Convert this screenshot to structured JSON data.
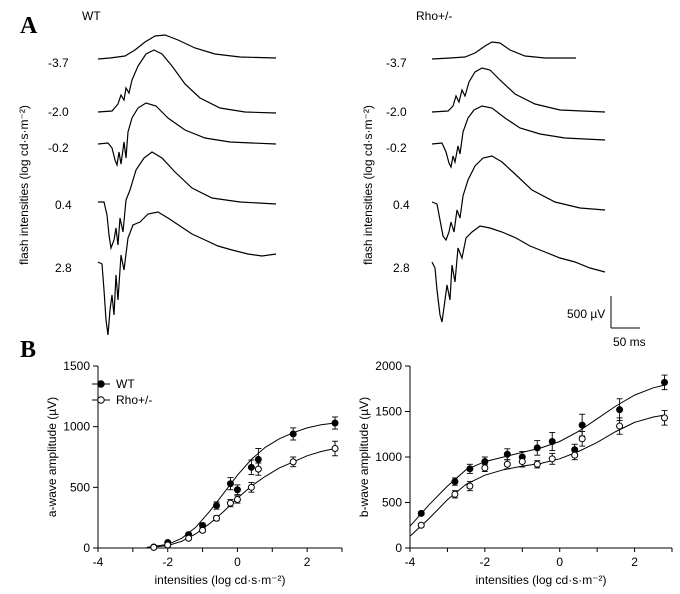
{
  "panel_a": {
    "letter": "A",
    "y_label": "flash intensities (log cd·s·m⁻²)",
    "groups": [
      {
        "name": "WT",
        "intensities": [
          "-3.7",
          "-2.0",
          "-0.2",
          "0.4",
          "2.8"
        ]
      },
      {
        "name": "Rho+/-",
        "intensities": [
          "-3.7",
          "-2.0",
          "-0.2",
          "0.4",
          "2.8"
        ]
      }
    ],
    "scale_bar": {
      "amplitude": "500 µV",
      "time": "50 ms"
    }
  },
  "panel_b": {
    "letter": "B",
    "x_label": "intensities (log cd·s·m⁻²)",
    "legend": {
      "wt": "WT",
      "rho": "Rho+/-"
    }
  },
  "chart_data": [
    {
      "type": "scatter",
      "ylabel": "a-wave amplitude (µV)",
      "xlabel": "intensities (log cd·s·m⁻²)",
      "xlim": [
        -4,
        3
      ],
      "ylim": [
        0,
        1500
      ],
      "xticks": [
        "-4",
        "-2",
        "0",
        "2"
      ],
      "yticks": [
        "0",
        "500",
        "1000",
        "1500"
      ],
      "legend": "top-left",
      "series": [
        {
          "name": "WT",
          "marker": "filled-circle",
          "x": [
            -2.4,
            -2.0,
            -1.4,
            -1.0,
            -0.6,
            -0.2,
            0.0,
            0.4,
            0.6,
            1.6,
            2.8
          ],
          "y": [
            8,
            45,
            110,
            185,
            350,
            530,
            480,
            665,
            730,
            940,
            1030
          ],
          "err": [
            0,
            8,
            12,
            20,
            30,
            50,
            40,
            60,
            90,
            50,
            50
          ]
        },
        {
          "name": "Rho+/-",
          "marker": "open-circle",
          "x": [
            -2.4,
            -2.0,
            -1.4,
            -1.0,
            -0.6,
            -0.2,
            0.0,
            0.4,
            0.6,
            1.6,
            2.8
          ],
          "y": [
            5,
            25,
            80,
            145,
            245,
            370,
            400,
            500,
            650,
            710,
            820
          ],
          "err": [
            0,
            6,
            10,
            15,
            20,
            30,
            30,
            40,
            50,
            40,
            60
          ]
        }
      ],
      "fits": [
        {
          "name": "WT",
          "x": [
            -2.6,
            -2.0,
            -1.6,
            -1.2,
            -0.8,
            -0.4,
            0.0,
            0.4,
            0.8,
            1.2,
            1.6,
            2.0,
            2.4,
            2.8
          ],
          "y": [
            5,
            30,
            80,
            170,
            300,
            450,
            600,
            730,
            830,
            900,
            950,
            990,
            1015,
            1030
          ]
        },
        {
          "name": "Rho+/-",
          "x": [
            -2.6,
            -2.0,
            -1.6,
            -1.2,
            -0.8,
            -0.4,
            0.0,
            0.4,
            0.8,
            1.2,
            1.6,
            2.0,
            2.4,
            2.8
          ],
          "y": [
            3,
            20,
            55,
            115,
            200,
            300,
            410,
            510,
            590,
            660,
            710,
            760,
            795,
            820
          ]
        }
      ]
    },
    {
      "type": "scatter",
      "ylabel": "b-wave amplitude (µV)",
      "xlabel": "intensities (log cd·s·m⁻²)",
      "xlim": [
        -4,
        3
      ],
      "ylim": [
        0,
        2000
      ],
      "xticks": [
        "-4",
        "-2",
        "0",
        "2"
      ],
      "yticks": [
        "0",
        "500",
        "1000",
        "1500",
        "2000"
      ],
      "series": [
        {
          "name": "WT",
          "marker": "filled-circle",
          "x": [
            -3.7,
            -2.8,
            -2.4,
            -2.0,
            -1.4,
            -1.0,
            -0.6,
            -0.2,
            0.4,
            0.6,
            1.6,
            2.8
          ],
          "y": [
            380,
            730,
            870,
            950,
            1030,
            1000,
            1100,
            1170,
            1080,
            1350,
            1520,
            1820
          ],
          "err": [
            20,
            40,
            50,
            50,
            60,
            60,
            80,
            100,
            60,
            120,
            120,
            80
          ]
        },
        {
          "name": "Rho+/-",
          "marker": "open-circle",
          "x": [
            -3.7,
            -2.8,
            -2.4,
            -2.0,
            -1.4,
            -1.0,
            -0.6,
            -0.2,
            0.4,
            0.6,
            1.6,
            2.8
          ],
          "y": [
            250,
            590,
            680,
            880,
            920,
            950,
            920,
            980,
            1020,
            1200,
            1340,
            1430
          ],
          "err": [
            20,
            40,
            50,
            40,
            50,
            60,
            40,
            60,
            50,
            80,
            90,
            80
          ]
        }
      ],
      "fits": [
        {
          "name": "WT",
          "x": [
            -4.0,
            -3.5,
            -3.0,
            -2.5,
            -2.0,
            -1.5,
            -1.0,
            -0.5,
            0.0,
            0.5,
            1.0,
            1.5,
            2.0,
            2.5,
            2.8
          ],
          "y": [
            240,
            470,
            680,
            860,
            950,
            1000,
            1050,
            1100,
            1170,
            1280,
            1420,
            1560,
            1680,
            1760,
            1790
          ]
        },
        {
          "name": "Rho+/-",
          "x": [
            -4.0,
            -3.5,
            -3.0,
            -2.5,
            -2.0,
            -1.5,
            -1.0,
            -0.5,
            0.0,
            0.5,
            1.0,
            1.5,
            2.0,
            2.5,
            2.8
          ],
          "y": [
            130,
            320,
            530,
            700,
            800,
            860,
            900,
            930,
            980,
            1060,
            1160,
            1280,
            1380,
            1440,
            1460
          ]
        }
      ]
    }
  ]
}
